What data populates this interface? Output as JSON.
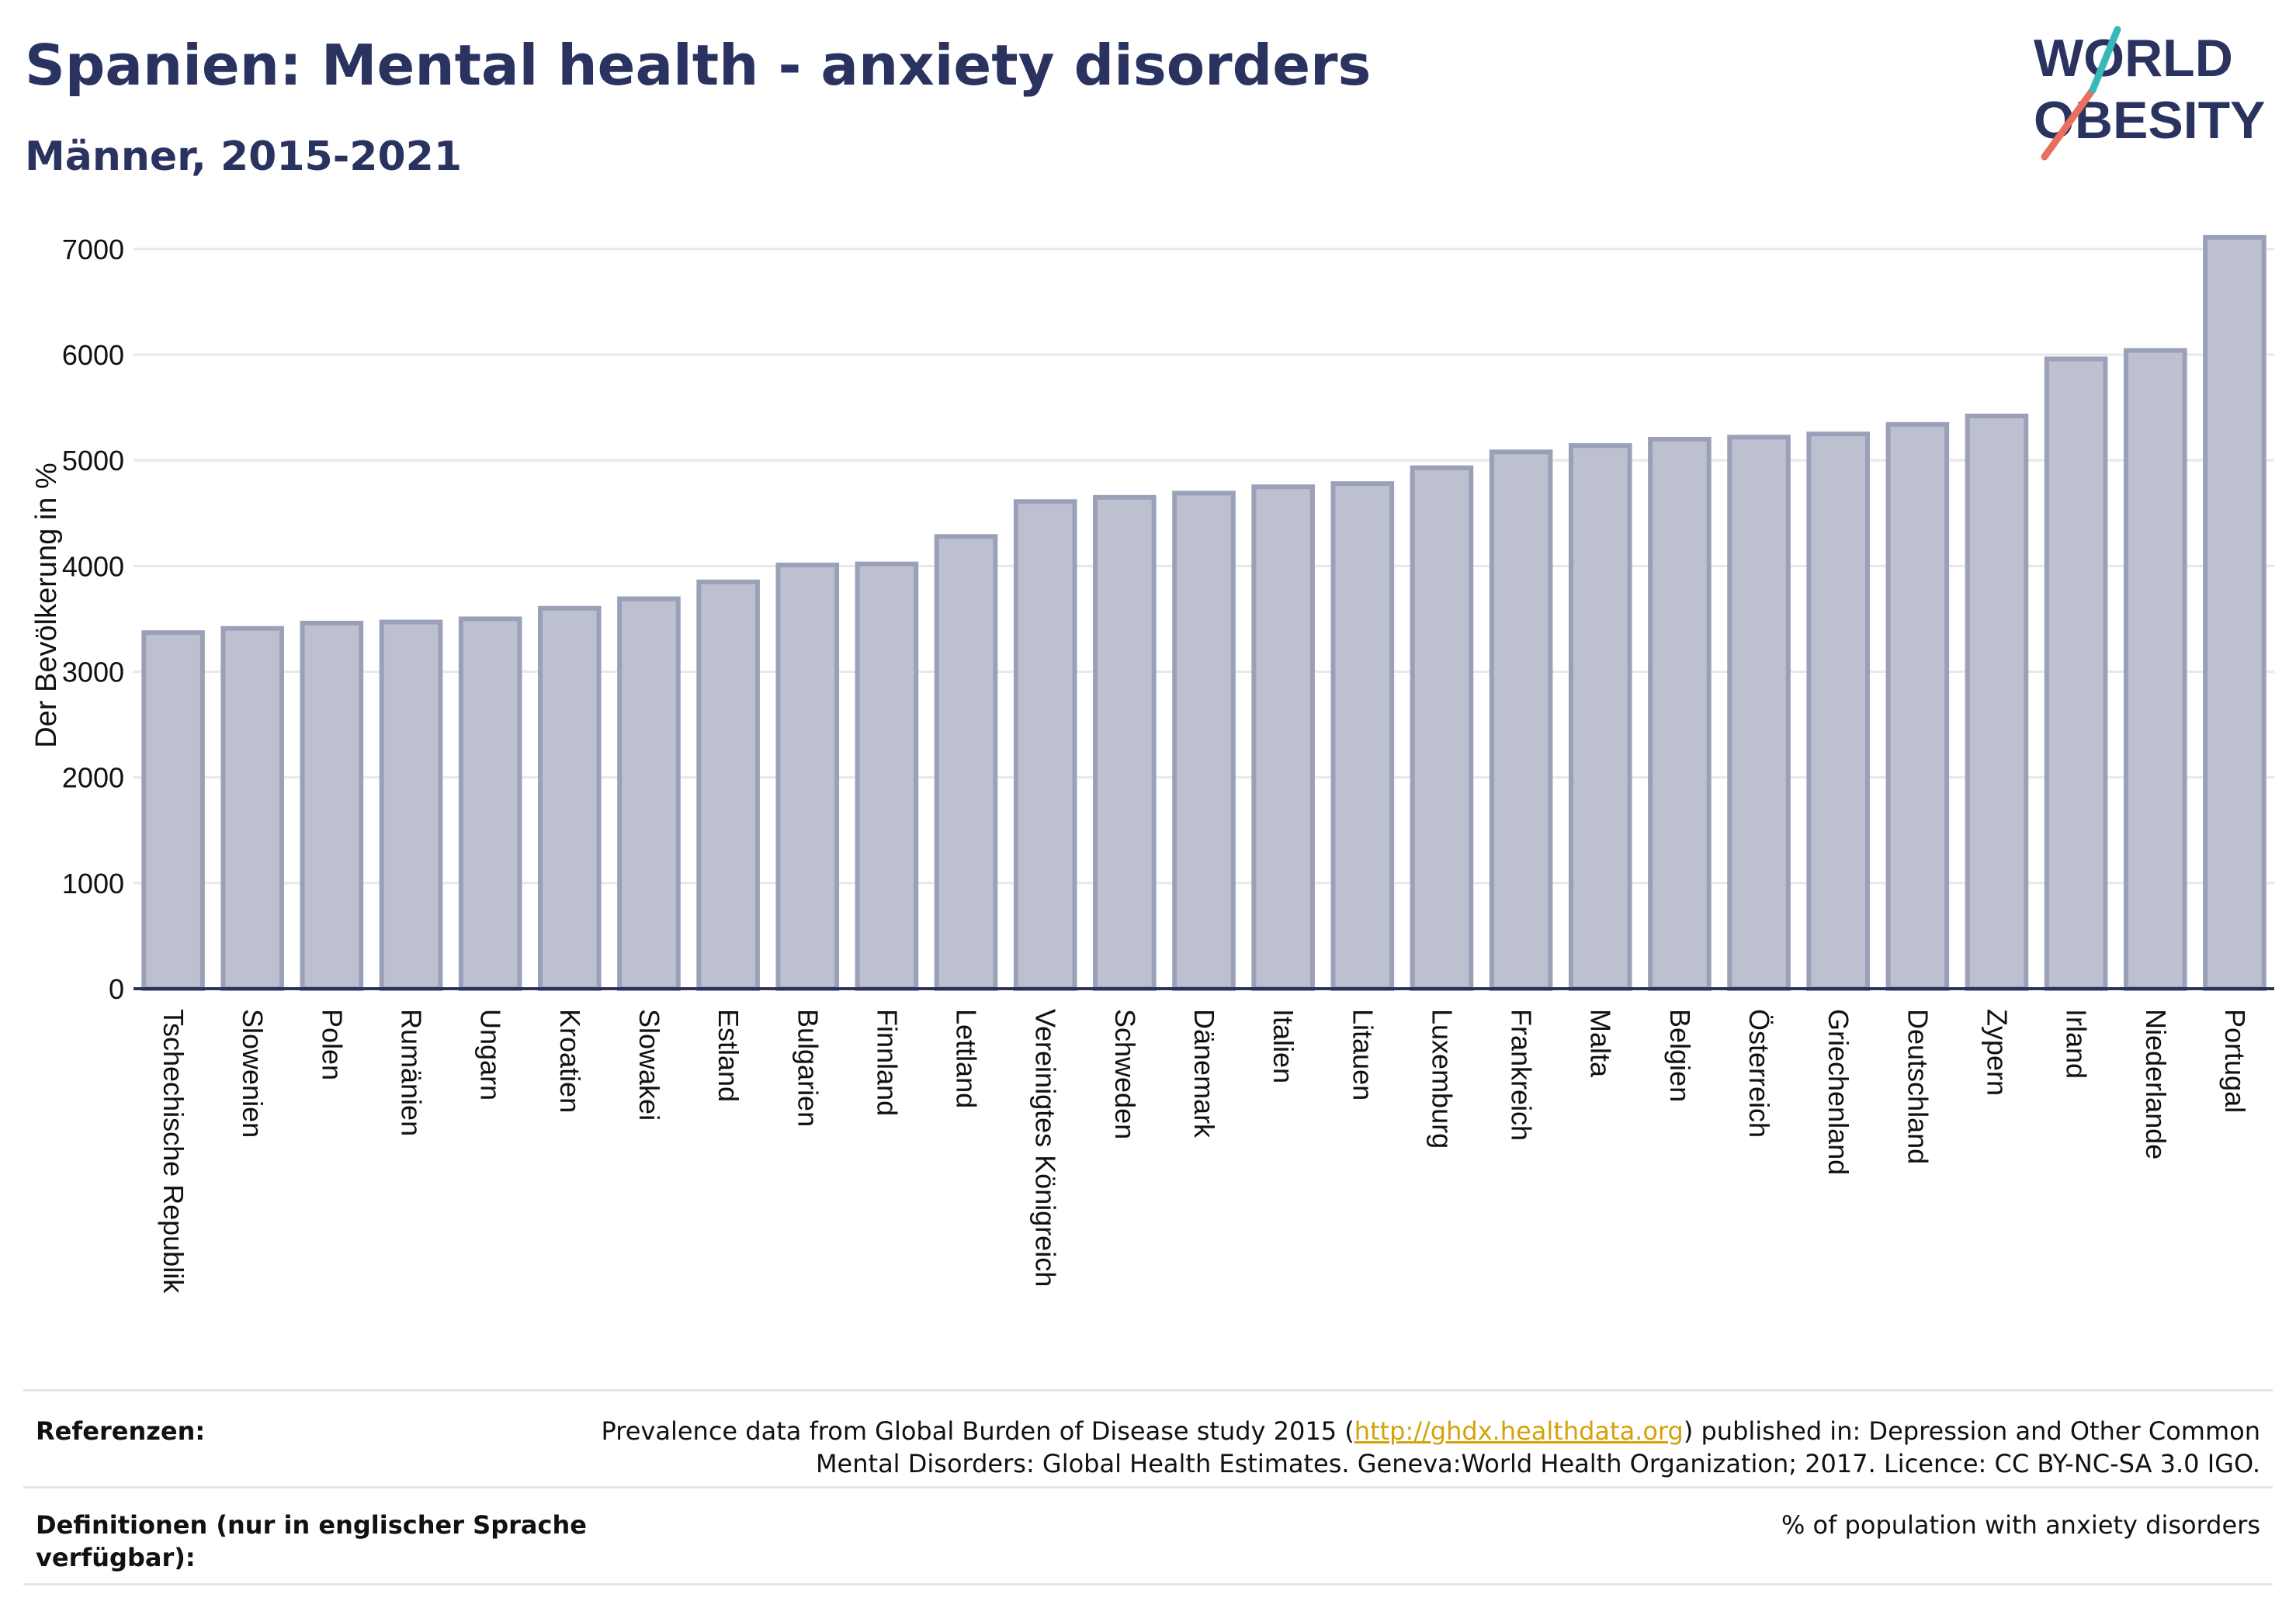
{
  "title": "Spanien: Mental health - anxiety disorders",
  "subtitle": "Männer, 2015-2021",
  "logo": {
    "line1": "WORLD",
    "line2": "OBESITY"
  },
  "colors": {
    "title": "#2a3360",
    "bar_fill": "#bcc0cf",
    "bar_stroke": "#9aa0b8",
    "link": "#d4a20a"
  },
  "chart_data": {
    "type": "bar",
    "ylabel": "Der Bevölkerung in %",
    "xlabel": "",
    "ylim": [
      0,
      7300
    ],
    "yticks": [
      0,
      1000,
      2000,
      3000,
      4000,
      5000,
      6000,
      7000
    ],
    "grid": true,
    "categories": [
      "Tschechische Republik",
      "Slowenien",
      "Polen",
      "Rumänien",
      "Ungarn",
      "Kroatien",
      "Slowakei",
      "Estland",
      "Bulgarien",
      "Finnland",
      "Lettland",
      "Vereinigtes Königreich",
      "Schweden",
      "Dänemark",
      "Italien",
      "Litauen",
      "Luxemburg",
      "Frankreich",
      "Malta",
      "Belgien",
      "Österreich",
      "Griechenland",
      "Deutschland",
      "Zypern",
      "Irland",
      "Niederlande",
      "Portugal"
    ],
    "values": [
      3370,
      3410,
      3460,
      3470,
      3500,
      3600,
      3690,
      3850,
      4010,
      4020,
      4280,
      4610,
      4650,
      4690,
      4750,
      4780,
      4930,
      5080,
      5140,
      5200,
      5220,
      5250,
      5340,
      5420,
      5960,
      6040,
      7110
    ]
  },
  "references": {
    "label": "Referenzen:",
    "text_before": "Prevalence data from Global Burden of Disease study 2015 (",
    "link": "http://ghdx.healthdata.org",
    "text_after": ") published in: Depression and Other Common",
    "text_line2": "Mental Disorders: Global Health Estimates. Geneva:World Health Organization; 2017. Licence: CC BY-NC-SA 3.0 IGO."
  },
  "definitions": {
    "label_line1": "Definitionen (nur in englischer Sprache",
    "label_line2": "verfügbar):",
    "text": "% of population with anxiety disorders"
  }
}
